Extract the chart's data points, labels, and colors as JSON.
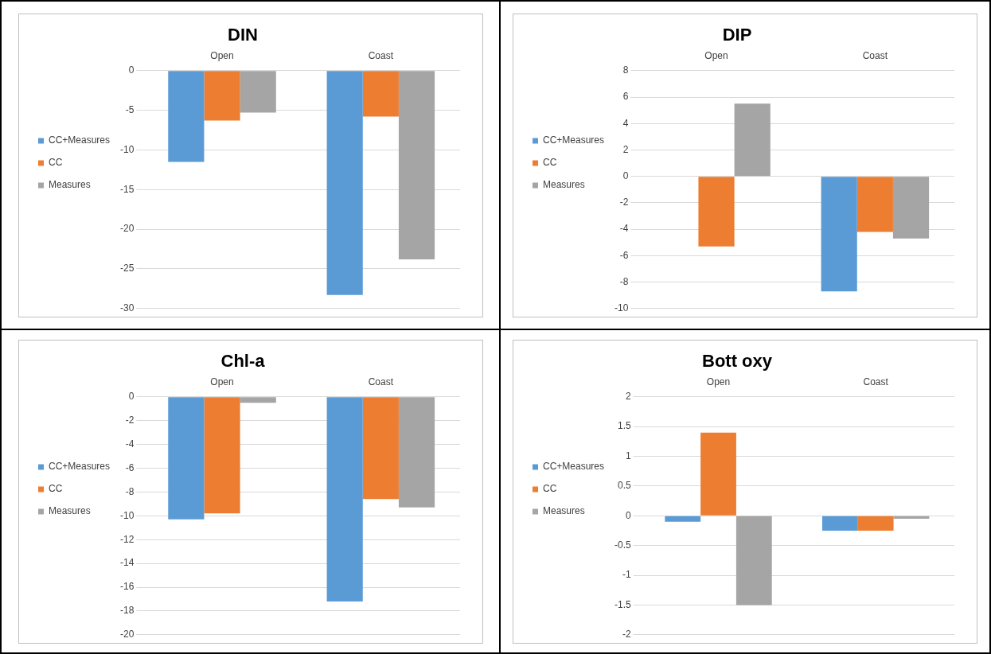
{
  "chart_data": [
    {
      "type": "bar",
      "title": "DIN",
      "categories": [
        "Open",
        "Coast"
      ],
      "series": [
        {
          "name": "CC+Measures",
          "color": "#5b9bd5",
          "values": [
            -11.5,
            -28.3
          ]
        },
        {
          "name": "CC",
          "color": "#ed7d31",
          "values": [
            -6.3,
            -5.8
          ]
        },
        {
          "name": "Measures",
          "color": "#a5a5a5",
          "values": [
            -5.3,
            -23.8
          ]
        }
      ],
      "ylim": [
        -30,
        0
      ],
      "yticks": [
        -30,
        -25,
        -20,
        -15,
        -10,
        -5,
        0
      ],
      "grid": "y",
      "legend": "left"
    },
    {
      "type": "bar",
      "title": "DIP",
      "categories": [
        "Open",
        "Coast"
      ],
      "series": [
        {
          "name": "CC+Measures",
          "color": "#5b9bd5",
          "values": [
            0,
            -8.7
          ]
        },
        {
          "name": "CC",
          "color": "#ed7d31",
          "values": [
            -5.3,
            -4.2
          ]
        },
        {
          "name": "Measures",
          "color": "#a5a5a5",
          "values": [
            5.5,
            -4.7
          ]
        }
      ],
      "ylim": [
        -10,
        8
      ],
      "yticks": [
        -10,
        -8,
        -6,
        -4,
        -2,
        0,
        2,
        4,
        6,
        8
      ],
      "grid": "y",
      "legend": "left"
    },
    {
      "type": "bar",
      "title": "Chl-a",
      "categories": [
        "Open",
        "Coast"
      ],
      "series": [
        {
          "name": "CC+Measures",
          "color": "#5b9bd5",
          "values": [
            -10.3,
            -17.2
          ]
        },
        {
          "name": "CC",
          "color": "#ed7d31",
          "values": [
            -9.8,
            -8.6
          ]
        },
        {
          "name": "Measures",
          "color": "#a5a5a5",
          "values": [
            -0.5,
            -9.3
          ]
        }
      ],
      "ylim": [
        -20,
        0
      ],
      "yticks": [
        -20,
        -18,
        -16,
        -14,
        -12,
        -10,
        -8,
        -6,
        -4,
        -2,
        0
      ],
      "grid": "y",
      "legend": "left"
    },
    {
      "type": "bar",
      "title": "Bott oxy",
      "categories": [
        "Open",
        "Coast"
      ],
      "series": [
        {
          "name": "CC+Measures",
          "color": "#5b9bd5",
          "values": [
            -0.1,
            -0.25
          ]
        },
        {
          "name": "CC",
          "color": "#ed7d31",
          "values": [
            1.4,
            -0.25
          ]
        },
        {
          "name": "Measures",
          "color": "#a5a5a5",
          "values": [
            -1.5,
            -0.05
          ]
        }
      ],
      "ylim": [
        -2,
        2
      ],
      "yticks": [
        -2,
        -1.5,
        -1,
        -0.5,
        0,
        0.5,
        1,
        1.5,
        2
      ],
      "grid": "y",
      "legend": "left"
    }
  ]
}
